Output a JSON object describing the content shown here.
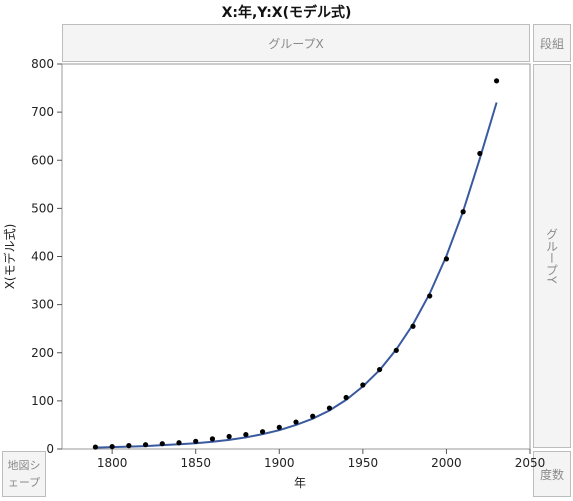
{
  "title": "X:年,Y:X(モデル式)",
  "zones": {
    "group_x": "グループX",
    "wrap": "段組",
    "group_y": "グループY",
    "map_shape": "地図シェープ",
    "freq": "度数"
  },
  "chart_data": {
    "type": "scatter",
    "title": "X:年,Y:X(モデル式)",
    "xlabel": "年",
    "ylabel": "X(モデル式)",
    "xlim": [
      1770,
      2050
    ],
    "ylim": [
      0,
      800
    ],
    "xticks": [
      1800,
      1850,
      1900,
      1950,
      2000,
      2050
    ],
    "yticks": [
      0,
      100,
      200,
      300,
      400,
      500,
      600,
      700,
      800
    ],
    "grid": false,
    "points": {
      "x": [
        1790,
        1800,
        1810,
        1820,
        1830,
        1840,
        1850,
        1860,
        1870,
        1880,
        1890,
        1900,
        1910,
        1920,
        1930,
        1940,
        1950,
        1960,
        1970,
        1980,
        1990,
        2000,
        2010,
        2020,
        2030
      ],
      "y": [
        4,
        5,
        7,
        9,
        11,
        13,
        16,
        21,
        26,
        30,
        36,
        45,
        56,
        68,
        85,
        107,
        133,
        165,
        205,
        255,
        318,
        395,
        493,
        614,
        765
      ]
    },
    "fit_line": {
      "x": [
        1790,
        1800,
        1810,
        1820,
        1830,
        1840,
        1850,
        1860,
        1870,
        1880,
        1890,
        1900,
        1910,
        1920,
        1930,
        1940,
        1950,
        1960,
        1970,
        1980,
        1990,
        2000,
        2010,
        2020,
        2030
      ],
      "y": [
        3,
        4,
        5,
        6,
        8,
        10,
        12,
        15,
        19,
        24,
        31,
        39,
        50,
        63,
        80,
        102,
        130,
        164,
        207,
        259,
        323,
        401,
        494,
        604,
        720
      ]
    },
    "colors": {
      "points": "#000000",
      "line": "#3a5aa0"
    }
  }
}
